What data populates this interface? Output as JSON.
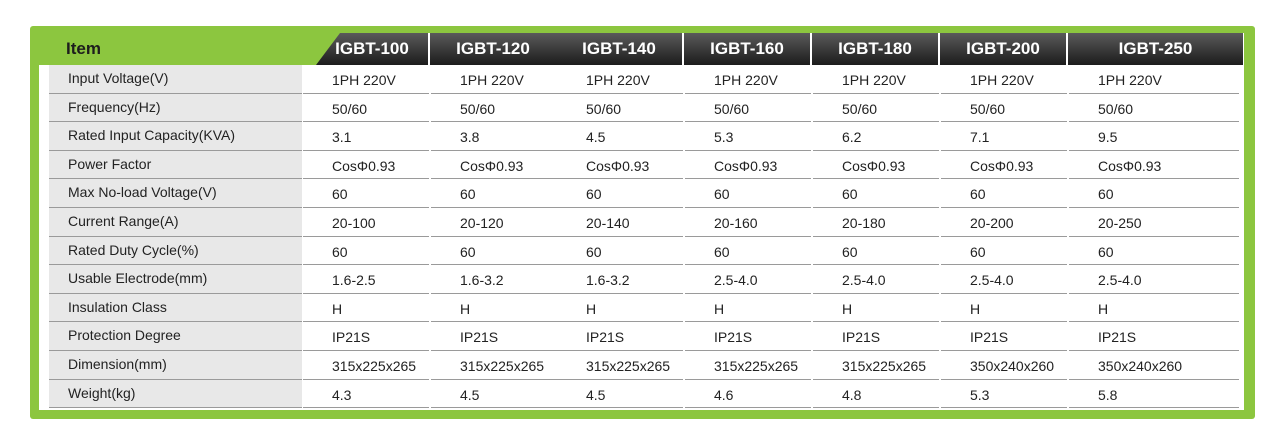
{
  "table": {
    "item_label": "Item",
    "models": [
      "IGBT-100",
      "IGBT-120",
      "IGBT-140",
      "IGBT-160",
      "IGBT-180",
      "IGBT-200",
      "IGBT-250"
    ],
    "rows": [
      {
        "label": "Input Voltage(V)",
        "values": [
          "1PH 220V",
          "1PH 220V",
          "1PH 220V",
          "1PH 220V",
          "1PH 220V",
          "1PH 220V",
          "1PH 220V"
        ]
      },
      {
        "label": "Frequency(Hz)",
        "values": [
          "50/60",
          "50/60",
          "50/60",
          "50/60",
          "50/60",
          "50/60",
          "50/60"
        ]
      },
      {
        "label": "Rated Input Capacity(KVA)",
        "values": [
          "3.1",
          "3.8",
          "4.5",
          "5.3",
          "6.2",
          "7.1",
          "9.5"
        ]
      },
      {
        "label": "Power Factor",
        "values": [
          "CosΦ0.93",
          "CosΦ0.93",
          "CosΦ0.93",
          "CosΦ0.93",
          "CosΦ0.93",
          "CosΦ0.93",
          "CosΦ0.93"
        ]
      },
      {
        "label": "Max No-load Voltage(V)",
        "values": [
          "60",
          "60",
          "60",
          "60",
          "60",
          "60",
          "60"
        ]
      },
      {
        "label": "Current Range(A)",
        "values": [
          "20-100",
          "20-120",
          "20-140",
          "20-160",
          "20-180",
          "20-200",
          "20-250"
        ]
      },
      {
        "label": "Rated Duty Cycle(%)",
        "values": [
          "60",
          "60",
          "60",
          "60",
          "60",
          "60",
          "60"
        ]
      },
      {
        "label": "Usable Electrode(mm)",
        "values": [
          "1.6-2.5",
          "1.6-3.2",
          "1.6-3.2",
          "2.5-4.0",
          "2.5-4.0",
          "2.5-4.0",
          "2.5-4.0"
        ]
      },
      {
        "label": "Insulation Class",
        "values": [
          "H",
          "H",
          "H",
          "H",
          "H",
          "H",
          "H"
        ]
      },
      {
        "label": "Protection Degree",
        "values": [
          "IP21S",
          "IP21S",
          "IP21S",
          "IP21S",
          "IP21S",
          "IP21S",
          "IP21S"
        ]
      },
      {
        "label": "Dimension(mm)",
        "values": [
          "315x225x265",
          "315x225x265",
          "315x225x265",
          "315x225x265",
          "315x225x265",
          "350x240x260",
          "350x240x260"
        ]
      },
      {
        "label": "Weight(kg)",
        "values": [
          "4.3",
          "4.5",
          "4.5",
          "4.6",
          "4.8",
          "5.3",
          "5.8"
        ]
      }
    ]
  },
  "colors": {
    "frame_green": "#8cc63f",
    "header_dark": "#2b2b2b",
    "label_gray": "#e8e8e8"
  }
}
